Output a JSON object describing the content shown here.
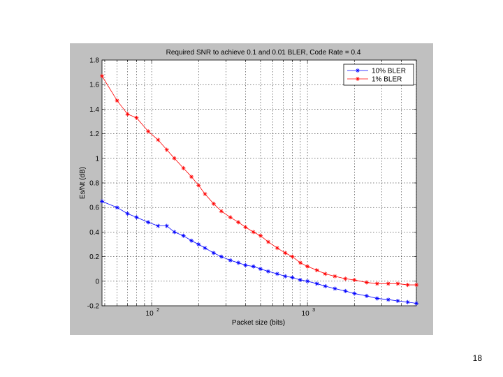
{
  "slide": {
    "page_number": "18"
  },
  "chart_data": {
    "type": "line",
    "title": "Required SNR to achieve 0.1 and 0.01 BLER, Code Rate = 0.4",
    "xlabel": "Packet size (bits)",
    "ylabel": "Es/Nt (dB)",
    "xscale": "log",
    "xlim": [
      48,
      5000
    ],
    "ylim": [
      -0.2,
      1.8
    ],
    "yticks": [
      -0.2,
      0,
      0.2,
      0.4,
      0.6,
      0.8,
      1,
      1.2,
      1.4,
      1.6,
      1.8
    ],
    "ytick_labels": [
      "-0.2",
      "0",
      "0.2",
      "0.4",
      "0.6",
      "0.8",
      "1",
      "1.2",
      "1.4",
      "1.6",
      "1.8"
    ],
    "xticks_major": [
      100,
      1000
    ],
    "xtick_labels": [
      {
        "base": "10",
        "exp": "2"
      },
      {
        "base": "10",
        "exp": "3"
      }
    ],
    "grid": true,
    "legend_position": "top-right",
    "background_color": "#c0c0c0",
    "series": [
      {
        "name": "10% BLER",
        "color": "#0000ff",
        "marker": "*",
        "x": [
          48,
          60,
          70,
          80,
          95,
          110,
          125,
          140,
          160,
          180,
          200,
          220,
          250,
          280,
          320,
          360,
          400,
          450,
          500,
          560,
          640,
          720,
          800,
          900,
          1000,
          1150,
          1300,
          1500,
          1750,
          2000,
          2400,
          2800,
          3300,
          3800,
          4400,
          5000
        ],
        "y": [
          0.65,
          0.6,
          0.55,
          0.52,
          0.48,
          0.45,
          0.45,
          0.4,
          0.37,
          0.33,
          0.3,
          0.27,
          0.23,
          0.2,
          0.17,
          0.15,
          0.13,
          0.12,
          0.1,
          0.08,
          0.06,
          0.04,
          0.03,
          0.01,
          0.0,
          -0.02,
          -0.04,
          -0.06,
          -0.08,
          -0.1,
          -0.12,
          -0.14,
          -0.15,
          -0.16,
          -0.17,
          -0.18
        ]
      },
      {
        "name": "1% BLER",
        "color": "#ff0000",
        "marker": "*",
        "x": [
          48,
          60,
          70,
          80,
          95,
          110,
          125,
          140,
          160,
          180,
          200,
          220,
          250,
          280,
          320,
          360,
          400,
          450,
          500,
          560,
          640,
          720,
          800,
          900,
          1000,
          1150,
          1300,
          1500,
          1750,
          2000,
          2400,
          2800,
          3300,
          3800,
          4400,
          5000
        ],
        "y": [
          1.67,
          1.47,
          1.36,
          1.33,
          1.22,
          1.15,
          1.07,
          1.0,
          0.92,
          0.85,
          0.78,
          0.71,
          0.63,
          0.57,
          0.52,
          0.48,
          0.44,
          0.4,
          0.37,
          0.32,
          0.27,
          0.23,
          0.2,
          0.15,
          0.12,
          0.09,
          0.06,
          0.04,
          0.02,
          0.01,
          -0.01,
          -0.02,
          -0.02,
          -0.02,
          -0.03,
          -0.03
        ]
      }
    ]
  }
}
